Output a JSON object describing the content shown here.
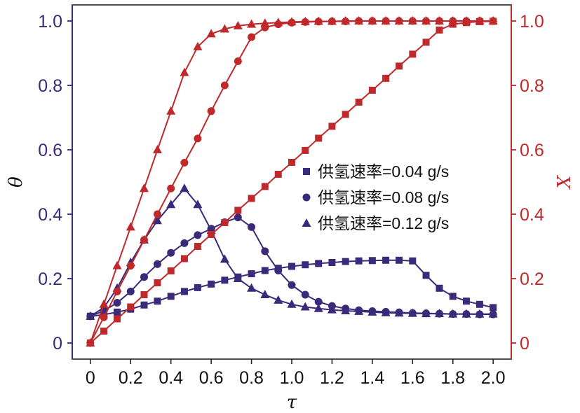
{
  "chart_data": {
    "type": "line",
    "xlabel": "τ",
    "ylabel_left": "θ",
    "ylabel_right": "X",
    "xlim": [
      -0.09,
      2.09
    ],
    "ylim_left": [
      -0.05,
      1.05
    ],
    "ylim_right": [
      -0.05,
      1.05
    ],
    "x_ticks": [
      "0",
      "0.2",
      "0.4",
      "0.6",
      "0.8",
      "1.0",
      "1.2",
      "1.4",
      "1.6",
      "1.8",
      "2.0"
    ],
    "y_ticks_left": [
      "0",
      "0.2",
      "0.4",
      "0.6",
      "0.8",
      "1.0"
    ],
    "y_ticks_right": [
      "0",
      "0.2",
      "0.4",
      "0.6",
      "0.8",
      "1.0"
    ],
    "grid": false,
    "legend_placement": "center-right",
    "colors": {
      "theta": "#3b2a7a",
      "X": "#c0292b",
      "left_axis": "#3b2a7a",
      "right_axis": "#c0292b",
      "x_axis": "#222222"
    },
    "legend": [
      {
        "marker": "square",
        "label": "供氢速率=0.04 g/s"
      },
      {
        "marker": "circle",
        "label": "供氢速率=0.08 g/s"
      },
      {
        "marker": "triangle",
        "label": "供氢速率=0.12 g/s"
      }
    ],
    "series": [
      {
        "quantity": "θ",
        "axis": "left",
        "marker": "square",
        "x": [
          0,
          0.067,
          0.133,
          0.2,
          0.267,
          0.333,
          0.4,
          0.467,
          0.533,
          0.6,
          0.667,
          0.733,
          0.8,
          0.867,
          0.933,
          1.0,
          1.067,
          1.133,
          1.2,
          1.267,
          1.333,
          1.4,
          1.467,
          1.533,
          1.6,
          1.667,
          1.733,
          1.8,
          1.867,
          1.933,
          2.0
        ],
        "y": [
          0.083,
          0.088,
          0.096,
          0.105,
          0.118,
          0.13,
          0.145,
          0.16,
          0.172,
          0.183,
          0.195,
          0.205,
          0.215,
          0.225,
          0.232,
          0.238,
          0.243,
          0.247,
          0.25,
          0.253,
          0.255,
          0.256,
          0.257,
          0.257,
          0.255,
          0.21,
          0.17,
          0.145,
          0.13,
          0.12,
          0.11
        ]
      },
      {
        "quantity": "θ",
        "axis": "left",
        "marker": "circle",
        "x": [
          0,
          0.067,
          0.133,
          0.2,
          0.267,
          0.333,
          0.4,
          0.467,
          0.533,
          0.6,
          0.667,
          0.733,
          0.8,
          0.867,
          0.933,
          1.0,
          1.067,
          1.133,
          1.2,
          1.267,
          1.333,
          1.4,
          1.467,
          1.533,
          1.6,
          1.667,
          1.733,
          1.8,
          1.867,
          1.933,
          2.0
        ],
        "y": [
          0.083,
          0.1,
          0.125,
          0.16,
          0.205,
          0.245,
          0.28,
          0.31,
          0.335,
          0.355,
          0.375,
          0.39,
          0.36,
          0.285,
          0.225,
          0.18,
          0.15,
          0.128,
          0.115,
          0.107,
          0.102,
          0.099,
          0.097,
          0.095,
          0.093,
          0.092,
          0.091,
          0.09,
          0.09,
          0.089,
          0.089
        ]
      },
      {
        "quantity": "θ",
        "axis": "left",
        "marker": "triangle",
        "x": [
          0,
          0.067,
          0.133,
          0.2,
          0.267,
          0.333,
          0.4,
          0.467,
          0.533,
          0.6,
          0.667,
          0.733,
          0.8,
          0.867,
          0.933,
          1.0,
          1.067,
          1.133,
          1.2,
          1.267,
          1.333,
          1.4,
          1.467,
          1.533,
          1.6,
          1.667,
          1.733,
          1.8,
          1.867,
          1.933,
          2.0
        ],
        "y": [
          0.083,
          0.11,
          0.17,
          0.25,
          0.32,
          0.38,
          0.43,
          0.48,
          0.43,
          0.35,
          0.26,
          0.2,
          0.17,
          0.15,
          0.133,
          0.12,
          0.112,
          0.107,
          0.103,
          0.1,
          0.098,
          0.096,
          0.094,
          0.093,
          0.092,
          0.091,
          0.091,
          0.09,
          0.09,
          0.09,
          0.09
        ]
      },
      {
        "quantity": "X",
        "axis": "right",
        "marker": "square",
        "x": [
          0,
          0.067,
          0.133,
          0.2,
          0.267,
          0.333,
          0.4,
          0.467,
          0.533,
          0.6,
          0.667,
          0.733,
          0.8,
          0.867,
          0.933,
          1.0,
          1.067,
          1.133,
          1.2,
          1.267,
          1.333,
          1.4,
          1.467,
          1.533,
          1.6,
          1.667,
          1.733,
          1.8,
          1.867,
          1.933,
          2.0
        ],
        "y": [
          0.0,
          0.037,
          0.075,
          0.112,
          0.15,
          0.187,
          0.224,
          0.262,
          0.3,
          0.337,
          0.374,
          0.412,
          0.449,
          0.486,
          0.524,
          0.561,
          0.598,
          0.636,
          0.673,
          0.71,
          0.748,
          0.785,
          0.822,
          0.86,
          0.897,
          0.934,
          0.972,
          0.99,
          0.995,
          0.998,
          0.999
        ]
      },
      {
        "quantity": "X",
        "axis": "right",
        "marker": "circle",
        "x": [
          0,
          0.067,
          0.133,
          0.2,
          0.267,
          0.333,
          0.4,
          0.467,
          0.533,
          0.6,
          0.667,
          0.733,
          0.8,
          0.867,
          0.933,
          1.0,
          1.067,
          1.133,
          1.2,
          1.267,
          1.333,
          1.4,
          1.467,
          1.533,
          1.6,
          1.667,
          1.733,
          1.8,
          1.867,
          1.933,
          2.0
        ],
        "y": [
          0.0,
          0.08,
          0.16,
          0.24,
          0.32,
          0.4,
          0.48,
          0.56,
          0.635,
          0.72,
          0.8,
          0.875,
          0.95,
          0.98,
          0.99,
          0.995,
          0.997,
          0.998,
          0.999,
          0.999,
          1.0,
          1.0,
          1.0,
          1.0,
          1.0,
          1.0,
          1.0,
          1.0,
          1.0,
          1.0,
          1.0
        ]
      },
      {
        "quantity": "X",
        "axis": "right",
        "marker": "triangle",
        "x": [
          0,
          0.067,
          0.133,
          0.2,
          0.267,
          0.333,
          0.4,
          0.467,
          0.533,
          0.6,
          0.667,
          0.733,
          0.8,
          0.867,
          0.933,
          1.0,
          1.067,
          1.133,
          1.2,
          1.267,
          1.333,
          1.4,
          1.467,
          1.533,
          1.6,
          1.667,
          1.733,
          1.8,
          1.867,
          1.933,
          2.0
        ],
        "y": [
          0.0,
          0.12,
          0.24,
          0.36,
          0.48,
          0.6,
          0.72,
          0.84,
          0.92,
          0.96,
          0.975,
          0.985,
          0.99,
          0.993,
          0.995,
          0.997,
          0.998,
          0.999,
          0.999,
          1.0,
          1.0,
          1.0,
          1.0,
          1.0,
          1.0,
          1.0,
          1.0,
          1.0,
          1.0,
          1.0,
          1.0
        ]
      }
    ]
  }
}
